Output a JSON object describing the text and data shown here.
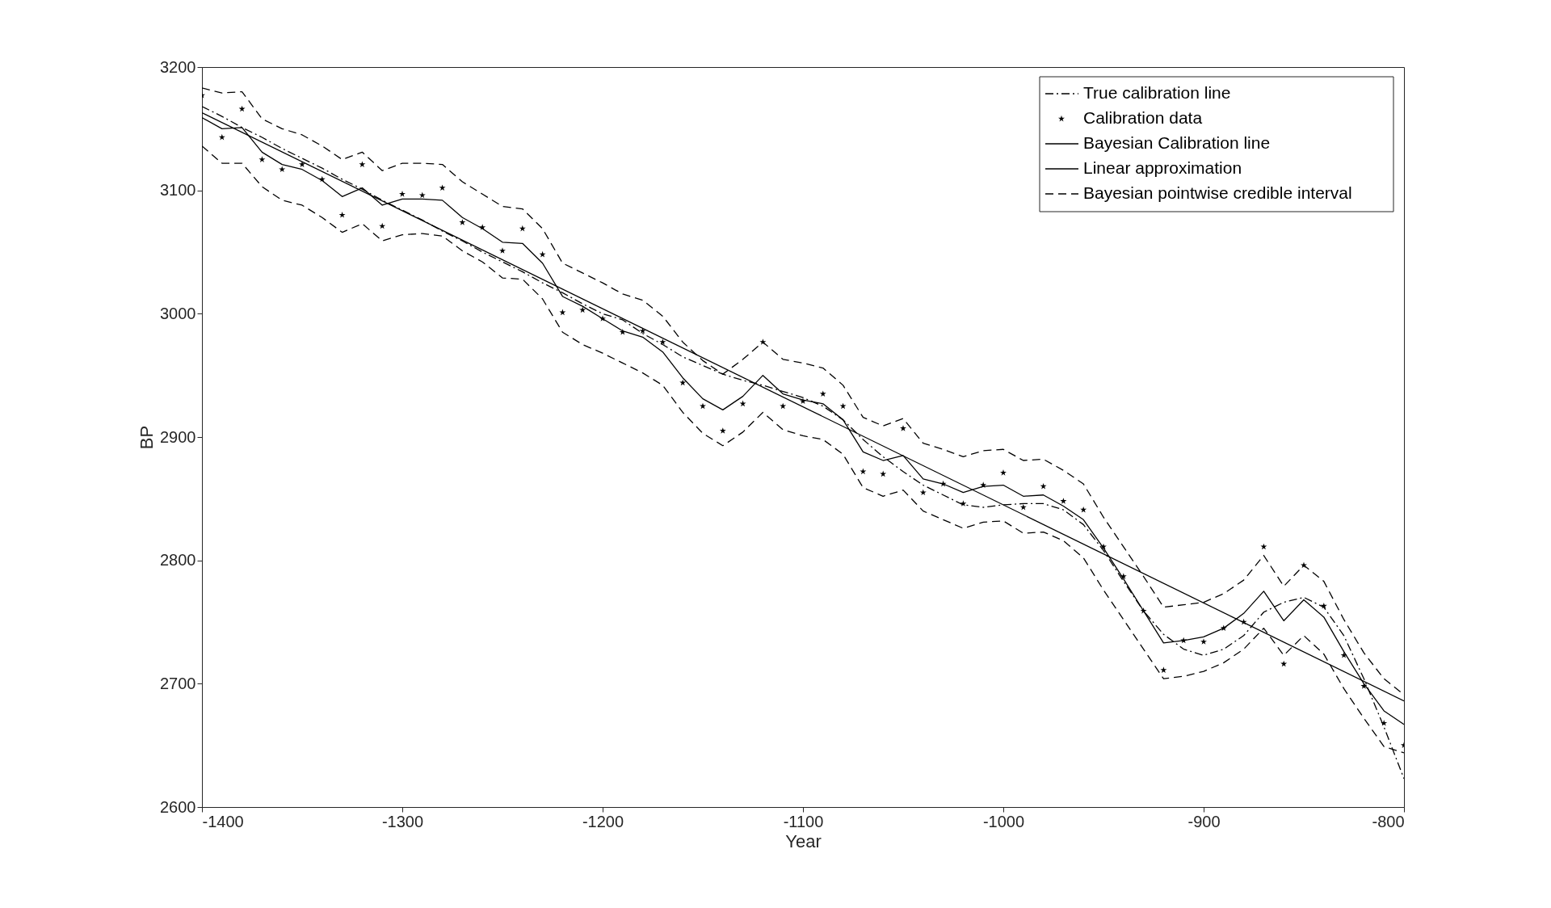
{
  "chart_data": {
    "type": "line",
    "xlabel": "Year",
    "ylabel": "BP",
    "x": [
      -1400,
      -1390,
      -1380,
      -1370,
      -1360,
      -1350,
      -1340,
      -1330,
      -1320,
      -1310,
      -1300,
      -1290,
      -1280,
      -1270,
      -1260,
      -1250,
      -1240,
      -1230,
      -1220,
      -1210,
      -1200,
      -1190,
      -1180,
      -1170,
      -1160,
      -1150,
      -1140,
      -1130,
      -1120,
      -1110,
      -1100,
      -1090,
      -1080,
      -1070,
      -1060,
      -1050,
      -1040,
      -1030,
      -1020,
      -1010,
      -1000,
      -990,
      -980,
      -970,
      -960,
      -950,
      -940,
      -930,
      -920,
      -910,
      -900,
      -890,
      -880,
      -870,
      -860,
      -850,
      -840,
      -830,
      -820,
      -810,
      -800
    ],
    "xlim": [
      -1400,
      -800
    ],
    "xticks": [
      -1400,
      -1300,
      -1200,
      -1100,
      -1000,
      -900,
      -800
    ],
    "ylim": [
      2600,
      3200
    ],
    "yticks": [
      2600,
      2700,
      2800,
      2900,
      3000,
      3100,
      3200
    ],
    "grid": false,
    "legend": "top right",
    "series": [
      {
        "name": "True calibration line",
        "type": "line",
        "line_style": "dashdot",
        "marker": "none",
        "color": "#000000",
        "values": [
          3168,
          3160,
          3151,
          3143,
          3134,
          3126,
          3118,
          3109,
          3101,
          3092,
          3084,
          3076,
          3067,
          3059,
          3050,
          3042,
          3034,
          3025,
          3017,
          3008,
          3000,
          2995,
          2984,
          2975,
          2965,
          2958,
          2951,
          2946,
          2942,
          2937,
          2932,
          2925,
          2914,
          2898,
          2884,
          2872,
          2861,
          2853,
          2845,
          2843,
          2845,
          2846,
          2846,
          2841,
          2829,
          2808,
          2783,
          2759,
          2740,
          2728,
          2723,
          2728,
          2739,
          2758,
          2766,
          2770,
          2762,
          2739,
          2704,
          2665,
          2623
        ]
      },
      {
        "name": "Calibration data",
        "type": "scatter",
        "marker": "star",
        "color": "#000000",
        "values": [
          3177,
          3143,
          3166,
          3125,
          3117,
          3121,
          3109,
          3080,
          3121,
          3071,
          3097,
          3096,
          3102,
          3074,
          3070,
          3051,
          3069,
          3048,
          3001,
          3003,
          2996,
          2985,
          2986,
          2977,
          2944,
          2925,
          2905,
          2927,
          2977,
          2925,
          2929,
          2935,
          2925,
          2872,
          2870,
          2907,
          2855,
          2862,
          2846,
          2861,
          2871,
          2843,
          2860,
          2848,
          2841,
          2811,
          2787,
          2759,
          2711,
          2735,
          2734,
          2745,
          2750,
          2811,
          2716,
          2796,
          2763,
          2723,
          2698,
          2668,
          2650
        ]
      },
      {
        "name": "Bayesian Calibration line",
        "type": "line",
        "line_style": "solid",
        "marker": "none",
        "color": "#000000",
        "values": [
          3159,
          3150,
          3151,
          3131,
          3121,
          3117,
          3108,
          3095,
          3102,
          3088,
          3093,
          3093,
          3092,
          3078,
          3069,
          3058,
          3057,
          3041,
          3014,
          3006,
          2996,
          2986,
          2981,
          2969,
          2948,
          2931,
          2922,
          2933,
          2950,
          2935,
          2930,
          2927,
          2914,
          2888,
          2881,
          2885,
          2866,
          2862,
          2855,
          2860,
          2861,
          2852,
          2853,
          2844,
          2833,
          2810,
          2785,
          2759,
          2733,
          2735,
          2738,
          2745,
          2757,
          2775,
          2751,
          2768,
          2754,
          2726,
          2700,
          2678,
          2667
        ]
      },
      {
        "name": "Linear approximation",
        "type": "line",
        "line_style": "solid",
        "marker": "none",
        "color": "#000000",
        "x": [
          -1400,
          -800
        ],
        "values": [
          3163,
          2686
        ]
      },
      {
        "name": "Bayesian pointwise credible interval",
        "type": "line",
        "line_style": "dashed",
        "marker": "none",
        "color": "#000000",
        "values": [
          3183,
          3179,
          3180,
          3158,
          3150,
          3145,
          3136,
          3125,
          3131,
          3116,
          3122,
          3122,
          3121,
          3107,
          3097,
          3087,
          3085,
          3069,
          3041,
          3033,
          3025,
          3016,
          3011,
          2998,
          2977,
          2962,
          2951,
          2963,
          2977,
          2963,
          2960,
          2956,
          2942,
          2916,
          2909,
          2915,
          2895,
          2890,
          2884,
          2889,
          2890,
          2881,
          2882,
          2873,
          2862,
          2835,
          2811,
          2787,
          2762,
          2764,
          2766,
          2773,
          2784,
          2804,
          2779,
          2796,
          2783,
          2752,
          2725,
          2704,
          2691
        ]
      },
      {
        "type": "line",
        "line_style": "dashed",
        "marker": "none",
        "color": "#000000",
        "values": [
          3136,
          3122,
          3122,
          3103,
          3092,
          3088,
          3078,
          3066,
          3073,
          3059,
          3064,
          3065,
          3063,
          3051,
          3042,
          3029,
          3028,
          3012,
          2985,
          2975,
          2968,
          2960,
          2952,
          2942,
          2920,
          2903,
          2893,
          2904,
          2920,
          2906,
          2901,
          2898,
          2886,
          2859,
          2852,
          2857,
          2840,
          2833,
          2826,
          2831,
          2832,
          2822,
          2823,
          2816,
          2802,
          2776,
          2752,
          2728,
          2704,
          2706,
          2710,
          2717,
          2728,
          2745,
          2723,
          2739,
          2724,
          2696,
          2672,
          2649,
          2644
        ]
      }
    ]
  }
}
